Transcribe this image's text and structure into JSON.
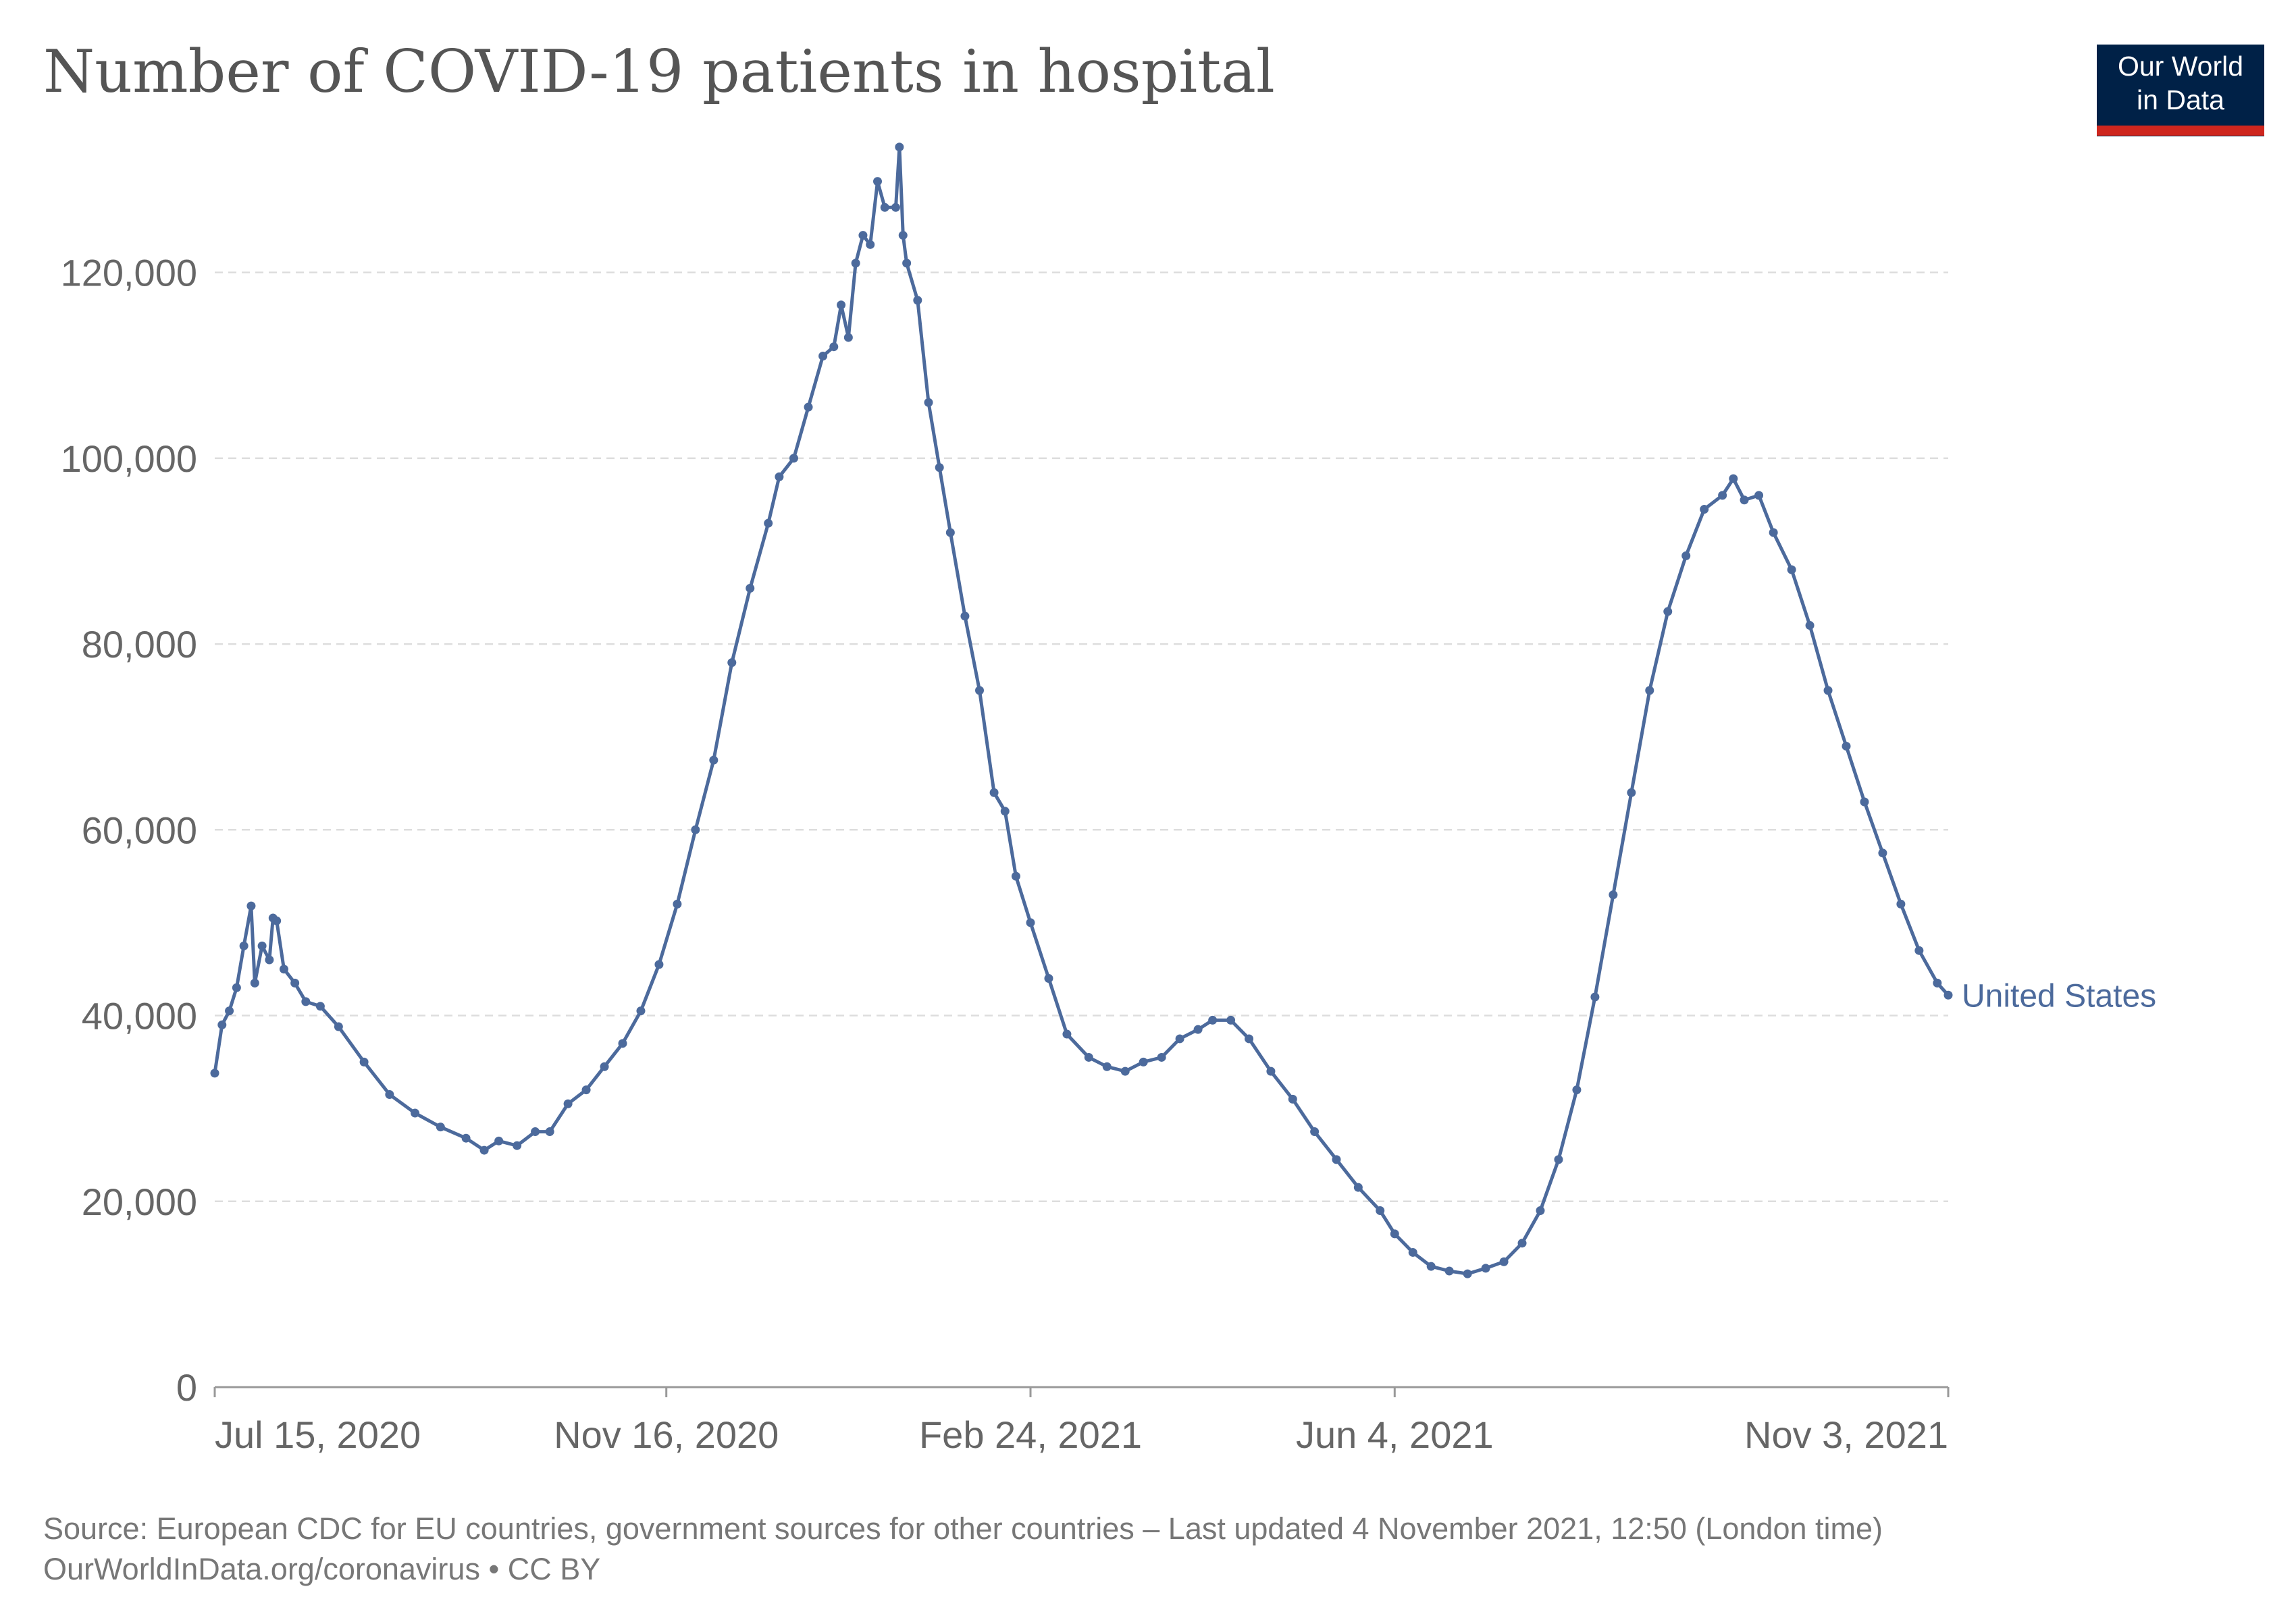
{
  "header": {
    "title": "Number of COVID-19 patients in hospital",
    "logo_line1": "Our World",
    "logo_line2": "in Data"
  },
  "footer": {
    "source": "Source: European CDC for EU countries, government sources for other countries – Last updated 4 November 2021, 12:50 (London time)",
    "credit": "OurWorldInData.org/coronavirus • CC BY"
  },
  "colors": {
    "series": "#4c6a9c",
    "logo_bg": "#002147",
    "logo_bar": "#ce261e"
  },
  "chart_data": {
    "type": "line",
    "title": "Number of COVID-19 patients in hospital",
    "xlabel": "",
    "ylabel": "",
    "x_type": "date",
    "xlim": [
      "2020-07-15",
      "2021-11-03"
    ],
    "ylim": [
      0,
      130000
    ],
    "yticks": [
      0,
      20000,
      40000,
      60000,
      80000,
      100000,
      120000
    ],
    "ytick_labels": [
      "0",
      "20,000",
      "40,000",
      "60,000",
      "80,000",
      "100,000",
      "120,000"
    ],
    "xticks": [
      "2020-07-15",
      "2020-11-16",
      "2021-02-24",
      "2021-06-04",
      "2021-11-03"
    ],
    "xtick_labels": [
      "Jul 15, 2020",
      "Nov 16, 2020",
      "Feb 24, 2021",
      "Jun 4, 2021",
      "Nov 3, 2021"
    ],
    "grid": true,
    "legend": "end-of-line label",
    "series": [
      {
        "name": "United States",
        "points": [
          [
            "2020-07-15",
            33800
          ],
          [
            "2020-07-17",
            39000
          ],
          [
            "2020-07-19",
            40500
          ],
          [
            "2020-07-21",
            43000
          ],
          [
            "2020-07-23",
            47500
          ],
          [
            "2020-07-25",
            51800
          ],
          [
            "2020-07-26",
            43500
          ],
          [
            "2020-07-28",
            47500
          ],
          [
            "2020-07-30",
            46000
          ],
          [
            "2020-07-31",
            50500
          ],
          [
            "2020-08-01",
            50200
          ],
          [
            "2020-08-03",
            45000
          ],
          [
            "2020-08-06",
            43500
          ],
          [
            "2020-08-09",
            41500
          ],
          [
            "2020-08-13",
            41000
          ],
          [
            "2020-08-18",
            38800
          ],
          [
            "2020-08-25",
            35000
          ],
          [
            "2020-09-01",
            31500
          ],
          [
            "2020-09-08",
            29500
          ],
          [
            "2020-09-15",
            28000
          ],
          [
            "2020-09-22",
            26800
          ],
          [
            "2020-09-27",
            25500
          ],
          [
            "2020-10-01",
            26500
          ],
          [
            "2020-10-06",
            26000
          ],
          [
            "2020-10-11",
            27500
          ],
          [
            "2020-10-15",
            27500
          ],
          [
            "2020-10-20",
            30500
          ],
          [
            "2020-10-25",
            32000
          ],
          [
            "2020-10-30",
            34500
          ],
          [
            "2020-11-04",
            37000
          ],
          [
            "2020-11-09",
            40500
          ],
          [
            "2020-11-14",
            45500
          ],
          [
            "2020-11-19",
            52000
          ],
          [
            "2020-11-24",
            60000
          ],
          [
            "2020-11-29",
            67500
          ],
          [
            "2020-12-04",
            78000
          ],
          [
            "2020-12-09",
            86000
          ],
          [
            "2020-12-14",
            93000
          ],
          [
            "2020-12-17",
            98000
          ],
          [
            "2020-12-21",
            100000
          ],
          [
            "2020-12-25",
            105500
          ],
          [
            "2020-12-29",
            111000
          ],
          [
            "2021-01-01",
            112000
          ],
          [
            "2021-01-03",
            116500
          ],
          [
            "2021-01-05",
            113000
          ],
          [
            "2021-01-07",
            121000
          ],
          [
            "2021-01-09",
            124000
          ],
          [
            "2021-01-11",
            123000
          ],
          [
            "2021-01-13",
            129800
          ],
          [
            "2021-01-15",
            127000
          ],
          [
            "2021-01-18",
            127000
          ],
          [
            "2021-01-19",
            133500
          ],
          [
            "2021-01-20",
            124000
          ],
          [
            "2021-01-21",
            121000
          ],
          [
            "2021-01-24",
            117000
          ],
          [
            "2021-01-27",
            106000
          ],
          [
            "2021-01-30",
            99000
          ],
          [
            "2021-02-02",
            92000
          ],
          [
            "2021-02-06",
            83000
          ],
          [
            "2021-02-10",
            75000
          ],
          [
            "2021-02-14",
            64000
          ],
          [
            "2021-02-17",
            62000
          ],
          [
            "2021-02-20",
            55000
          ],
          [
            "2021-02-24",
            50000
          ],
          [
            "2021-03-01",
            44000
          ],
          [
            "2021-03-06",
            38000
          ],
          [
            "2021-03-12",
            35500
          ],
          [
            "2021-03-17",
            34500
          ],
          [
            "2021-03-22",
            34000
          ],
          [
            "2021-03-27",
            35000
          ],
          [
            "2021-04-01",
            35500
          ],
          [
            "2021-04-06",
            37500
          ],
          [
            "2021-04-11",
            38500
          ],
          [
            "2021-04-15",
            39500
          ],
          [
            "2021-04-20",
            39500
          ],
          [
            "2021-04-25",
            37500
          ],
          [
            "2021-05-01",
            34000
          ],
          [
            "2021-05-07",
            31000
          ],
          [
            "2021-05-13",
            27500
          ],
          [
            "2021-05-19",
            24500
          ],
          [
            "2021-05-25",
            21500
          ],
          [
            "2021-05-31",
            19000
          ],
          [
            "2021-06-04",
            16500
          ],
          [
            "2021-06-09",
            14500
          ],
          [
            "2021-06-14",
            13000
          ],
          [
            "2021-06-19",
            12500
          ],
          [
            "2021-06-24",
            12200
          ],
          [
            "2021-06-29",
            12800
          ],
          [
            "2021-07-04",
            13500
          ],
          [
            "2021-07-09",
            15500
          ],
          [
            "2021-07-14",
            19000
          ],
          [
            "2021-07-19",
            24500
          ],
          [
            "2021-07-24",
            32000
          ],
          [
            "2021-07-29",
            42000
          ],
          [
            "2021-08-03",
            53000
          ],
          [
            "2021-08-08",
            64000
          ],
          [
            "2021-08-13",
            75000
          ],
          [
            "2021-08-18",
            83500
          ],
          [
            "2021-08-23",
            89500
          ],
          [
            "2021-08-28",
            94500
          ],
          [
            "2021-09-02",
            96000
          ],
          [
            "2021-09-05",
            97800
          ],
          [
            "2021-09-08",
            95500
          ],
          [
            "2021-09-12",
            96000
          ],
          [
            "2021-09-16",
            92000
          ],
          [
            "2021-09-21",
            88000
          ],
          [
            "2021-09-26",
            82000
          ],
          [
            "2021-10-01",
            75000
          ],
          [
            "2021-10-06",
            69000
          ],
          [
            "2021-10-11",
            63000
          ],
          [
            "2021-10-16",
            57500
          ],
          [
            "2021-10-21",
            52000
          ],
          [
            "2021-10-26",
            47000
          ],
          [
            "2021-10-31",
            43500
          ],
          [
            "2021-11-03",
            42200
          ]
        ]
      }
    ]
  }
}
